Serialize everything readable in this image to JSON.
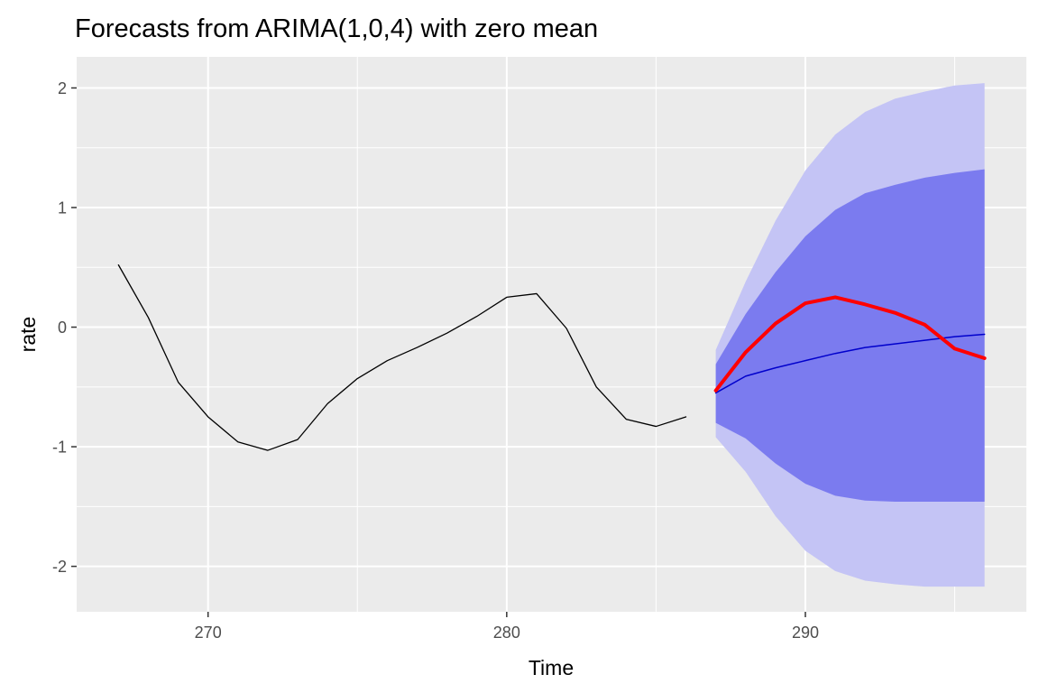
{
  "chart_data": {
    "type": "line",
    "title": "Forecasts from ARIMA(1,0,4) with zero mean",
    "xlabel": "Time",
    "ylabel": "rate",
    "xlim": [
      265.6,
      297.4
    ],
    "ylim": [
      -2.38,
      2.26
    ],
    "x_ticks": [
      270,
      280,
      290
    ],
    "x_tick_labels": [
      "270",
      "280",
      "290"
    ],
    "y_ticks": [
      -2,
      -1,
      0,
      1,
      2
    ],
    "y_tick_labels": [
      "-2",
      "-1",
      "0",
      "1",
      "2"
    ],
    "grid": true,
    "legend": "none",
    "colors": {
      "panel": "#ebebeb",
      "grid": "#ffffff",
      "observed": "#000000",
      "forecast": "#0000cc",
      "band80": "#7b7bef",
      "band95": "#c4c4f5",
      "red_series": "#ff0000"
    },
    "series": [
      {
        "role": "observed",
        "x": [
          267,
          268,
          269,
          270,
          271,
          272,
          273,
          274,
          275,
          276,
          277,
          278,
          279,
          280,
          281,
          282,
          283,
          284,
          285,
          286
        ],
        "values": [
          0.52,
          0.08,
          -0.46,
          -0.75,
          -0.96,
          -1.03,
          -0.94,
          -0.64,
          -0.43,
          -0.28,
          -0.17,
          -0.05,
          0.09,
          0.25,
          0.28,
          -0.01,
          -0.5,
          -0.77,
          -0.83,
          -0.75
        ]
      },
      {
        "role": "point_forecast",
        "x": [
          287,
          288,
          289,
          290,
          291,
          292,
          293,
          294,
          295,
          296
        ],
        "values": [
          -0.55,
          -0.41,
          -0.34,
          -0.28,
          -0.22,
          -0.17,
          -0.14,
          -0.11,
          -0.08,
          -0.06
        ]
      },
      {
        "role": "red_line",
        "x": [
          287,
          288,
          289,
          290,
          291,
          292,
          293,
          294,
          295,
          296
        ],
        "values": [
          -0.53,
          -0.21,
          0.03,
          0.2,
          0.25,
          0.19,
          0.12,
          0.02,
          -0.18,
          -0.26
        ]
      }
    ],
    "intervals": [
      {
        "level": 95,
        "x": [
          287,
          288,
          289,
          290,
          291,
          292,
          293,
          294,
          295,
          296
        ],
        "lower": [
          -0.92,
          -1.21,
          -1.58,
          -1.87,
          -2.04,
          -2.12,
          -2.15,
          -2.17,
          -2.17,
          -2.17
        ],
        "upper": [
          -0.19,
          0.38,
          0.89,
          1.31,
          1.61,
          1.8,
          1.91,
          1.97,
          2.02,
          2.04
        ]
      },
      {
        "level": 80,
        "x": [
          287,
          288,
          289,
          290,
          291,
          292,
          293,
          294,
          295,
          296
        ],
        "lower": [
          -0.8,
          -0.93,
          -1.14,
          -1.31,
          -1.41,
          -1.45,
          -1.46,
          -1.46,
          -1.46,
          -1.46
        ],
        "upper": [
          -0.31,
          0.11,
          0.46,
          0.76,
          0.98,
          1.12,
          1.19,
          1.25,
          1.29,
          1.32
        ]
      }
    ]
  }
}
